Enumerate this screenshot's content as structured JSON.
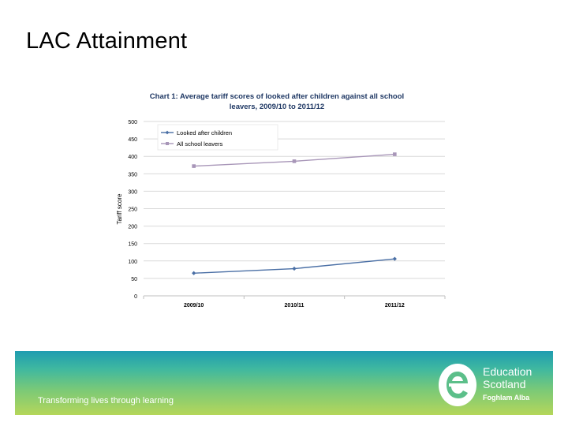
{
  "slide": {
    "title": "LAC Attainment"
  },
  "footer": {
    "tagline": "Transforming lives through learning",
    "logo_line1": "Education",
    "logo_line2": "Scotland",
    "logo_line3": "Foghlam Alba"
  },
  "colors": {
    "looked_after": "#4a6fa5",
    "all_leavers": "#a896b8",
    "grid": "#d9d9d9"
  },
  "chart_data": {
    "type": "line",
    "title_line1": "Chart 1: Average tariff scores of looked after children against all school",
    "title_line2": "leavers, 2009/10 to 2011/12",
    "ylabel": "Tariff score",
    "xlabel": "",
    "ylim": [
      0,
      500
    ],
    "yticks": [
      "0",
      "50",
      "100",
      "150",
      "200",
      "250",
      "300",
      "350",
      "400",
      "450",
      "500"
    ],
    "categories": [
      "2009/10",
      "2010/11",
      "2011/12"
    ],
    "series": [
      {
        "name": "Looked after children",
        "values": [
          65,
          78,
          106
        ]
      },
      {
        "name": "All school leavers",
        "values": [
          372,
          386,
          406
        ]
      }
    ],
    "legend_position": "top-left",
    "grid": true
  }
}
